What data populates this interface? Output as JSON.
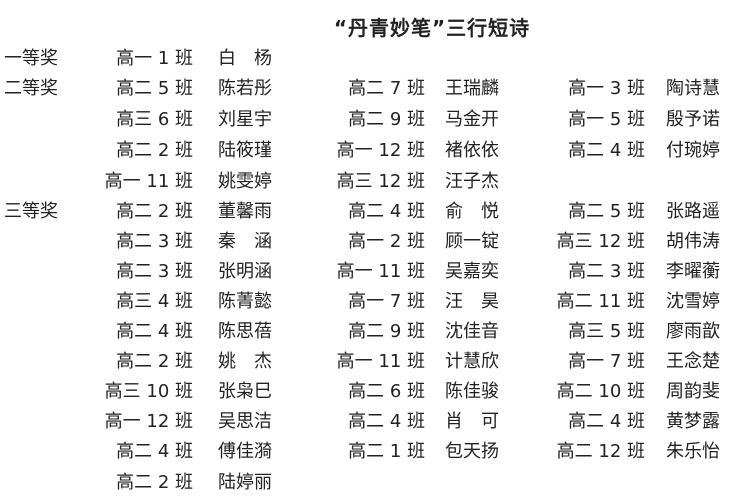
{
  "title": "“丹青妙笔”三行短诗",
  "rows": [
    {
      "award": "一等奖",
      "entries": [
        [
          "高一 1 班",
          "白　杨"
        ]
      ]
    },
    {
      "award": "二等奖",
      "entries": [
        [
          "高二 5 班",
          "陈若彤"
        ],
        [
          "高二 7 班",
          "王瑞麟"
        ],
        [
          "高一 3 班",
          "陶诗慧"
        ]
      ]
    },
    {
      "award": "",
      "entries": [
        [
          "高三 6 班",
          "刘星宇"
        ],
        [
          "高二 9 班",
          "马金开"
        ],
        [
          "高一 5 班",
          "殷予诺"
        ]
      ]
    },
    {
      "award": "",
      "entries": [
        [
          "高二 2 班",
          "陆筱瑾"
        ],
        [
          "高一 12 班",
          "褚依依"
        ],
        [
          "高二 4 班",
          "付琬婷"
        ]
      ]
    },
    {
      "award": "",
      "entries": [
        [
          "高一 11 班",
          "姚雯婷"
        ],
        [
          "高三 12 班",
          "汪子杰"
        ]
      ]
    },
    {
      "award": "三等奖",
      "entries": [
        [
          "高二 2 班",
          "董馨雨"
        ],
        [
          "高二 4 班",
          "俞　悦"
        ],
        [
          "高二 5 班",
          "张路遥"
        ]
      ]
    },
    {
      "award": "",
      "entries": [
        [
          "高二 3 班",
          "秦　涵"
        ],
        [
          "高一 2 班",
          "顾一锭"
        ],
        [
          "高三 12 班",
          "胡伟涛"
        ]
      ]
    },
    {
      "award": "",
      "entries": [
        [
          "高二 3 班",
          "张明涵"
        ],
        [
          "高一 11 班",
          "吴嘉奕"
        ],
        [
          "高二 3 班",
          "李曜蘅"
        ]
      ]
    },
    {
      "award": "",
      "entries": [
        [
          "高三 4 班",
          "陈菁懿"
        ],
        [
          "高一 7 班",
          "汪　昊"
        ],
        [
          "高二 11 班",
          "沈雪婷"
        ]
      ]
    },
    {
      "award": "",
      "entries": [
        [
          "高二 4 班",
          "陈思蓓"
        ],
        [
          "高二 9 班",
          "沈佳音"
        ],
        [
          "高三 5 班",
          "廖雨歆"
        ]
      ]
    },
    {
      "award": "",
      "entries": [
        [
          "高二 2 班",
          "姚　杰"
        ],
        [
          "高一 11 班",
          "计慧欣"
        ],
        [
          "高一 7 班",
          "王念楚"
        ]
      ]
    },
    {
      "award": "",
      "entries": [
        [
          "高三 10 班",
          "张枭巳"
        ],
        [
          "高二 6 班",
          "陈佳骏"
        ],
        [
          "高二 10 班",
          "周韵斐"
        ]
      ]
    },
    {
      "award": "",
      "entries": [
        [
          "高一 12 班",
          "吴思洁"
        ],
        [
          "高二 4 班",
          "肖　可"
        ],
        [
          "高二 4 班",
          "黄梦露"
        ]
      ]
    },
    {
      "award": "",
      "entries": [
        [
          "高二 4 班",
          "傅佳漪"
        ],
        [
          "高二 1 班",
          "包天扬"
        ],
        [
          "高二 12 班",
          "朱乐怡"
        ]
      ]
    },
    {
      "award": "",
      "entries": [
        [
          "高二 2 班",
          "陆婷丽"
        ]
      ]
    }
  ]
}
